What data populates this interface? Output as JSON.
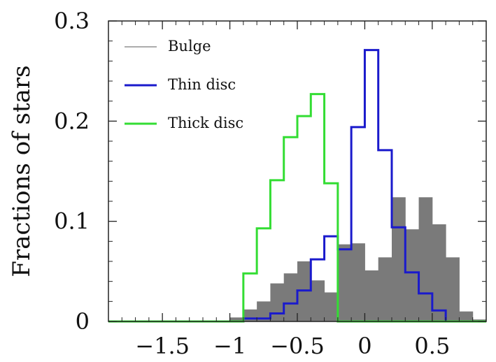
{
  "chart_data": {
    "type": "bar",
    "title": "",
    "xlabel": "",
    "ylabel": "Fractions of stars",
    "xlim": [
      -1.9,
      0.9
    ],
    "ylim": [
      0,
      0.3
    ],
    "grid": false,
    "legend_position": "top-left",
    "bin_width": 0.1,
    "x_ticks": [
      {
        "value": -1.5,
        "label": "−1.5"
      },
      {
        "value": -1,
        "label": "−1"
      },
      {
        "value": -0.5,
        "label": "−0.5"
      },
      {
        "value": 0,
        "label": "0"
      },
      {
        "value": 0.5,
        "label": "0.5"
      }
    ],
    "y_ticks": [
      {
        "value": 0,
        "label": "0"
      },
      {
        "value": 0.1,
        "label": "0.1"
      },
      {
        "value": 0.2,
        "label": "0.2"
      },
      {
        "value": 0.3,
        "label": "0.3"
      }
    ],
    "series": [
      {
        "name": "Bulge",
        "style": "filled",
        "color": "#7a7a7a",
        "bin_starts": [
          -1.9,
          -1.8,
          -1.7,
          -1.6,
          -1.5,
          -1.4,
          -1.3,
          -1.2,
          -1.1,
          -1.0,
          -0.9,
          -0.8,
          -0.7,
          -0.6,
          -0.5,
          -0.4,
          -0.3,
          -0.2,
          -0.1,
          0.0,
          0.1,
          0.2,
          0.3,
          0.4,
          0.5,
          0.6,
          0.7,
          0.8
        ],
        "values": [
          0,
          0,
          0,
          0,
          0,
          0,
          0,
          0,
          0,
          0.004,
          0.012,
          0.02,
          0.038,
          0.048,
          0.06,
          0.041,
          0.029,
          0.077,
          0.078,
          0.051,
          0.064,
          0.124,
          0.092,
          0.124,
          0.097,
          0.064,
          0.01,
          0.002
        ]
      },
      {
        "name": "Thin disc",
        "style": "step",
        "color": "#1a1acc",
        "bin_starts": [
          -1.9,
          -1.8,
          -1.7,
          -1.6,
          -1.5,
          -1.4,
          -1.3,
          -1.2,
          -1.1,
          -1.0,
          -0.9,
          -0.8,
          -0.7,
          -0.6,
          -0.5,
          -0.4,
          -0.3,
          -0.2,
          -0.1,
          0.0,
          0.1,
          0.2,
          0.3,
          0.4,
          0.5,
          0.6,
          0.7,
          0.8
        ],
        "values": [
          0,
          0,
          0,
          0,
          0,
          0,
          0,
          0,
          0,
          0,
          0.003,
          0.003,
          0.008,
          0.018,
          0.031,
          0.062,
          0.085,
          0.072,
          0.194,
          0.271,
          0.171,
          0.094,
          0.049,
          0.028,
          0.011,
          0,
          0,
          0
        ]
      },
      {
        "name": "Thick disc",
        "style": "step",
        "color": "#33dd33",
        "bin_starts": [
          -1.9,
          -1.8,
          -1.7,
          -1.6,
          -1.5,
          -1.4,
          -1.3,
          -1.2,
          -1.1,
          -1.0,
          -0.9,
          -0.8,
          -0.7,
          -0.6,
          -0.5,
          -0.4,
          -0.3,
          -0.2,
          -0.1,
          0.0,
          0.1,
          0.2,
          0.3,
          0.4,
          0.5,
          0.6,
          0.7,
          0.8
        ],
        "values": [
          0,
          0,
          0,
          0,
          0,
          0,
          0,
          0,
          0,
          0,
          0.048,
          0.093,
          0.141,
          0.184,
          0.205,
          0.227,
          0.138,
          0,
          0,
          0,
          0,
          0,
          0,
          0,
          0,
          0,
          0,
          0
        ]
      }
    ]
  }
}
